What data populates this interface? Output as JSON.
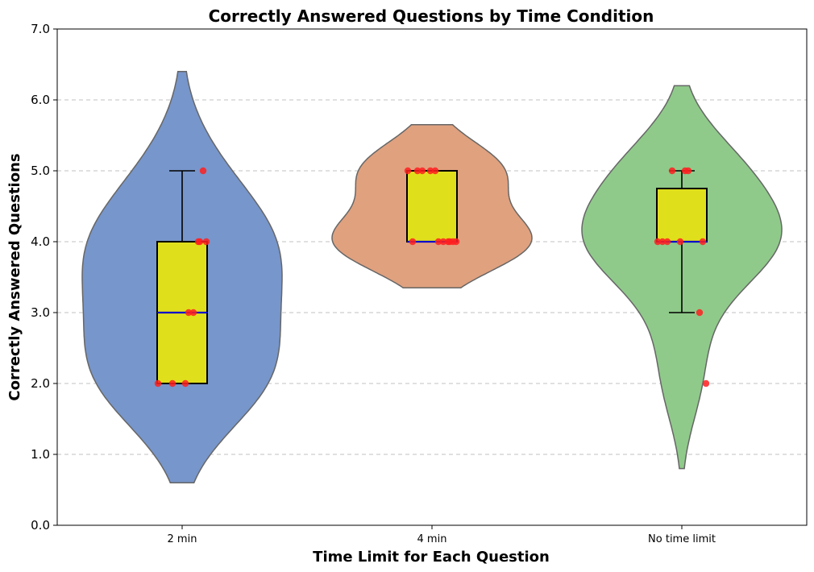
{
  "chart_data": {
    "type": "violin",
    "title": "Correctly Answered Questions by Time Condition",
    "xlabel": "Time Limit for Each Question",
    "ylabel": "Correctly Answered Questions",
    "ylim": [
      0.0,
      7.0
    ],
    "yticks": [
      "0.0",
      "1.0",
      "2.0",
      "3.0",
      "4.0",
      "5.0",
      "6.0",
      "7.0"
    ],
    "categories": [
      "2 min",
      "4 min",
      "No time limit"
    ],
    "grid": "y-dashed",
    "colors": {
      "violins": [
        "#7796cb",
        "#e0a17f",
        "#8fca8a"
      ],
      "violin_edge": "#666666",
      "box_fill": "#e0df1c",
      "median": "#0000cc",
      "points": "#ff2020",
      "grid": "#c0c0c0"
    },
    "box": [
      {
        "q1": 2.0,
        "median": 3.0,
        "q3": 4.0,
        "whisker_low": 2.0,
        "whisker_high": 5.0
      },
      {
        "q1": 4.0,
        "median": 4.0,
        "q3": 5.0,
        "whisker_low": 4.0,
        "whisker_high": 5.0
      },
      {
        "q1": 4.0,
        "median": 4.0,
        "q3": 4.75,
        "whisker_low": 3.0,
        "whisker_high": 5.0
      }
    ],
    "violin_range": [
      [
        0.6,
        6.4
      ],
      [
        3.35,
        5.65
      ],
      [
        0.8,
        6.2
      ]
    ],
    "points": [
      [
        2,
        2,
        2,
        3,
        3,
        4,
        4,
        4,
        5
      ],
      [
        4,
        4,
        4,
        4,
        4,
        4,
        4,
        5,
        5,
        5,
        5,
        5
      ],
      [
        2,
        3,
        4,
        4,
        4,
        4,
        4,
        5,
        5,
        5
      ]
    ]
  }
}
